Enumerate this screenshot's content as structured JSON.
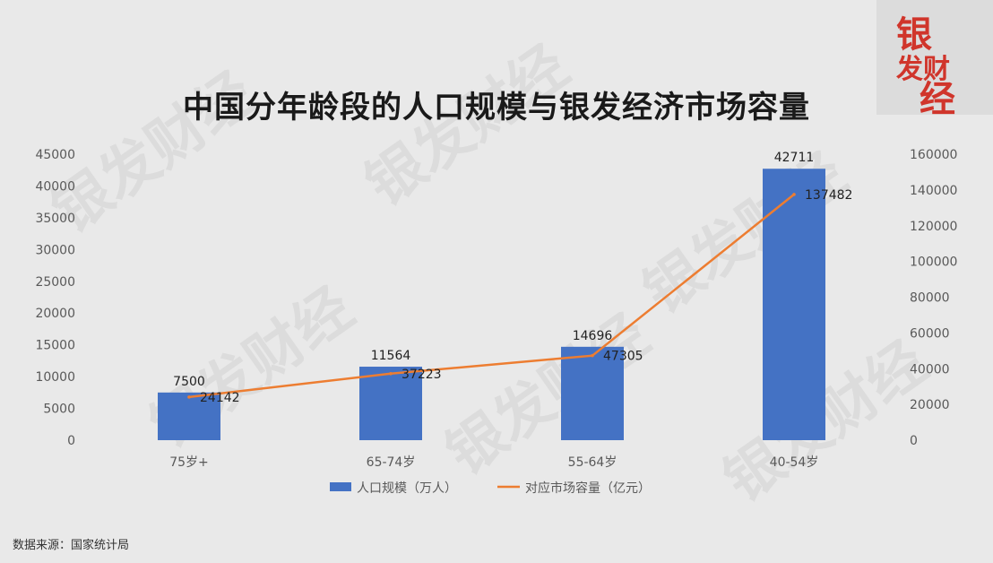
{
  "title": "中国分年龄段的人口规模与银发经济市场容量",
  "source": "数据来源：国家统计局",
  "logo": {
    "line1": "银",
    "line2": "发财",
    "line3": "经"
  },
  "watermark": "银发财经",
  "colors": {
    "bar": "#4472c4",
    "line": "#ed7d31",
    "axis_text": "#595959"
  },
  "chart_data": {
    "type": "bar",
    "categories": [
      "75岁+",
      "65-74岁",
      "55-64岁",
      "40-54岁"
    ],
    "series": [
      {
        "name": "人口规模（万人）",
        "type": "bar",
        "axis": "left",
        "values": [
          7500,
          11564,
          14696,
          42711
        ]
      },
      {
        "name": "对应市场容量（亿元）",
        "type": "line",
        "axis": "right",
        "values": [
          24142,
          37223,
          47305,
          137482
        ]
      }
    ],
    "y_left": {
      "min": 0,
      "max": 45000,
      "step": 5000
    },
    "y_right": {
      "min": 0,
      "max": 160000,
      "step": 20000
    },
    "legend_position": "bottom",
    "grid": false
  }
}
